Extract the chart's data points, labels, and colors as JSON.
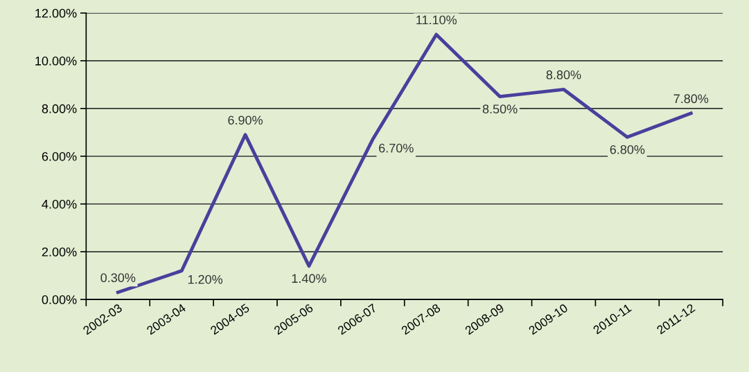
{
  "chart_data": {
    "type": "line",
    "categories": [
      "2002-03",
      "2003-04",
      "2004-05",
      "2005-06",
      "2006-07",
      "2007-08",
      "2008-09",
      "2009-10",
      "2010-11",
      "2011-12"
    ],
    "series": [
      {
        "color": "#4a3f9c",
        "values": [
          0.3,
          1.2,
          6.9,
          1.4,
          6.7,
          11.1,
          8.5,
          8.8,
          6.8,
          7.8
        ],
        "value_labels": [
          "0.30%",
          "1.20%",
          "6.90%",
          "1.40%",
          "6.70%",
          "11.10%",
          "8.50%",
          "8.80%",
          "6.80%",
          "7.80%"
        ]
      }
    ],
    "ylim": [
      0,
      12
    ],
    "yticks": [
      {
        "value": 0,
        "label": "0.00%"
      },
      {
        "value": 2,
        "label": "2.00%"
      },
      {
        "value": 4,
        "label": "4.00%"
      },
      {
        "value": 6,
        "label": "6.00%"
      },
      {
        "value": 8,
        "label": "8.00%"
      },
      {
        "value": 10,
        "label": "10.00%"
      },
      {
        "value": 12,
        "label": "12.00%"
      }
    ],
    "grid": "y",
    "marker": "none",
    "line_style": "solid"
  }
}
